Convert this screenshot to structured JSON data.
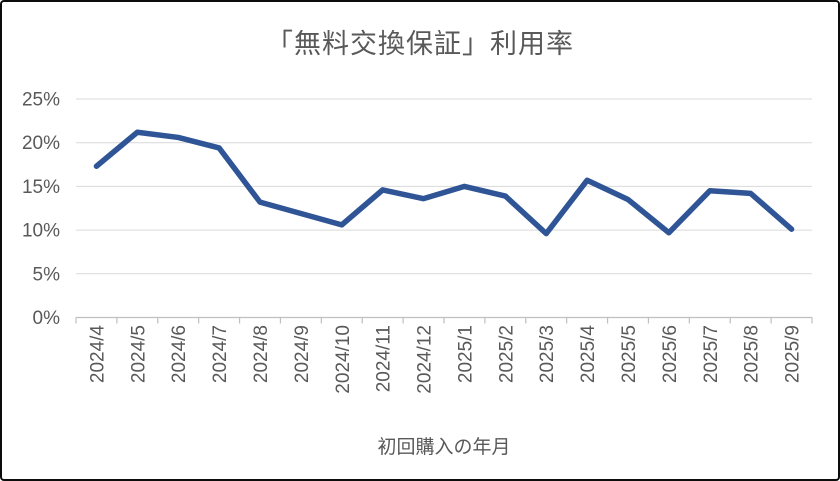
{
  "chart_data": {
    "type": "line",
    "title": "「無料交換保証」利用率",
    "xlabel": "初回購入の年月",
    "ylabel": "",
    "categories": [
      "2024/4",
      "2024/5",
      "2024/6",
      "2024/7",
      "2024/8",
      "2024/9",
      "2024/10",
      "2024/11",
      "2024/12",
      "2025/1",
      "2025/2",
      "2025/3",
      "2025/4",
      "2025/5",
      "2025/6",
      "2025/7",
      "2025/8",
      "2025/9"
    ],
    "values": [
      17.3,
      21.2,
      20.6,
      19.4,
      13.2,
      11.9,
      10.6,
      14.6,
      13.6,
      15.0,
      13.9,
      9.6,
      15.7,
      13.5,
      9.7,
      14.5,
      14.2,
      10.1
    ],
    "ylim": [
      0,
      25
    ],
    "y_ticks": [
      0,
      5,
      10,
      15,
      20,
      25
    ],
    "y_tick_labels": [
      "0%",
      "5%",
      "10%",
      "15%",
      "20%",
      "25%"
    ],
    "grid": true,
    "legend": false,
    "x_labels_rotated_degrees": -90,
    "colors": {
      "line": "#2F5597",
      "text": "#595959",
      "gridline": "#D9D9D9",
      "axis": "#BFBFBF",
      "background": "#FFFFFF",
      "frame_border": "#0C0C0C"
    }
  }
}
